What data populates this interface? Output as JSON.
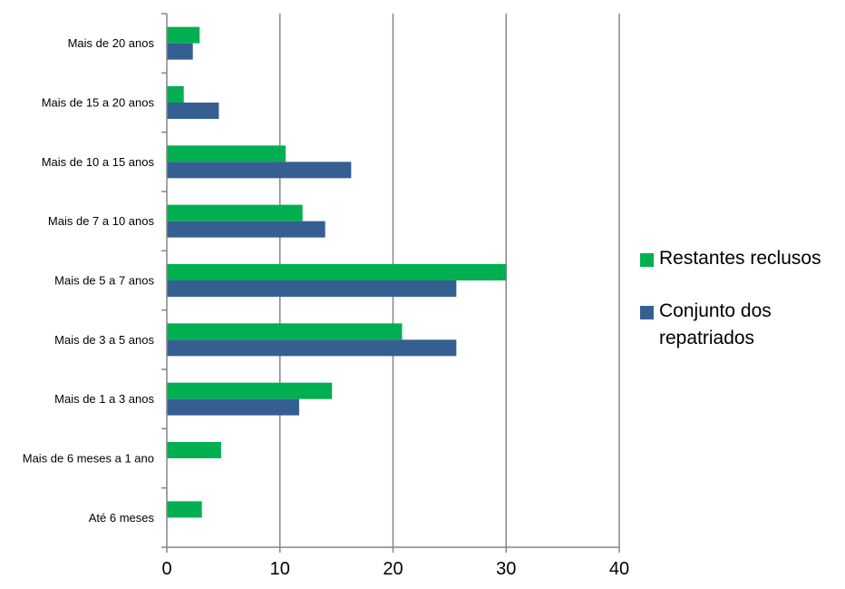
{
  "chart_data": {
    "type": "bar",
    "orientation": "horizontal",
    "categories": [
      "Mais de 20 anos",
      "Mais de 15 a 20 anos",
      "Mais de 10 a 15 anos",
      "Mais de 7 a 10 anos",
      "Mais de 5 a 7 anos",
      "Mais de 3 a 5 anos",
      "Mais de 1 a 3 anos",
      "Mais de 6 meses a 1 ano",
      "Até 6 meses"
    ],
    "series": [
      {
        "name": "Restantes reclusos",
        "color": "#00b050",
        "values": [
          2.9,
          1.5,
          10.5,
          12.0,
          30.0,
          20.8,
          14.6,
          4.8,
          3.1
        ]
      },
      {
        "name": "Conjunto dos repatriados",
        "color": "#365f91",
        "values": [
          2.3,
          4.6,
          16.3,
          14.0,
          25.6,
          25.6,
          11.7,
          0,
          0
        ]
      }
    ],
    "xlim": [
      0,
      40
    ],
    "xticks": [
      "0",
      "10",
      "20",
      "30",
      "40"
    ],
    "title": "",
    "xlabel": "",
    "ylabel": "",
    "grid": "vertical",
    "legend_position": "right"
  }
}
